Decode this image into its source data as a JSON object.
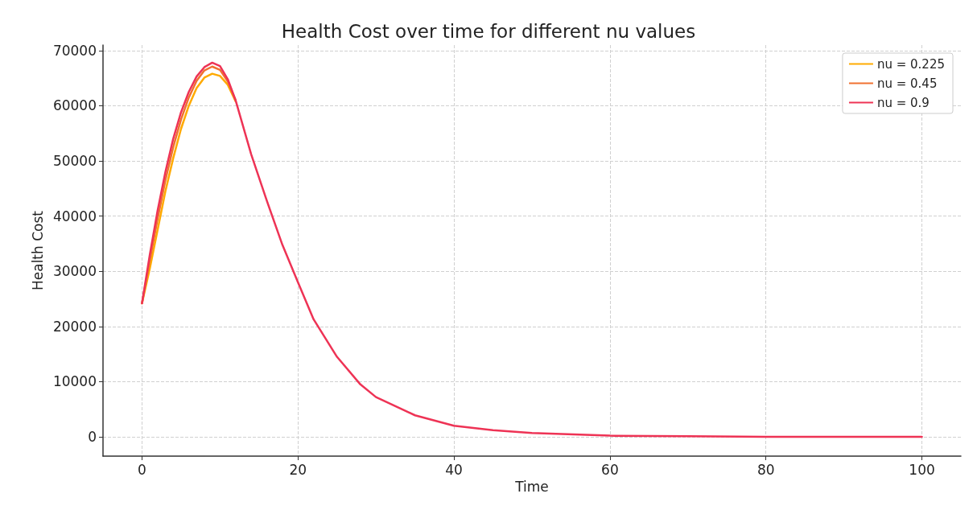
{
  "chart_data": {
    "type": "line",
    "title": "Health Cost over time for different nu values",
    "xlabel": "Time",
    "ylabel": "Health Cost",
    "xlim": [
      -5,
      105
    ],
    "xticks": [
      0,
      20,
      40,
      60,
      80,
      100
    ],
    "ylim": [
      -3500,
      71000
    ],
    "yticks": [
      0,
      10000,
      20000,
      30000,
      40000,
      50000,
      60000,
      70000
    ],
    "grid": true,
    "legend": "top right",
    "line_style": "solid",
    "marker": "none",
    "series": [
      {
        "name": "nu = 0.225",
        "color": "#ffaa00",
        "x": [
          0,
          1,
          2,
          3,
          4,
          5,
          6,
          7,
          8,
          9,
          10,
          11,
          12
        ],
        "values": [
          24200,
          30500,
          37500,
          44500,
          50500,
          55800,
          60000,
          63200,
          65100,
          65800,
          65400,
          63800,
          60800
        ]
      },
      {
        "name": "nu = 0.45",
        "color": "#f07030",
        "x": [
          0,
          1,
          2,
          3,
          4,
          5,
          6,
          7,
          8,
          9,
          10,
          11,
          12
        ],
        "values": [
          24200,
          32000,
          39500,
          46500,
          52500,
          57500,
          61500,
          64500,
          66400,
          67100,
          66500,
          64400,
          61000
        ]
      },
      {
        "name": "nu = 0.9",
        "color": "#ee3355",
        "x": [
          0,
          1,
          2,
          3,
          4,
          5,
          6,
          7,
          8,
          9,
          10,
          11,
          12,
          14,
          16,
          18,
          20,
          22,
          25,
          28,
          30,
          35,
          40,
          45,
          50,
          60,
          70,
          80,
          90,
          100
        ],
        "values": [
          24200,
          33000,
          41000,
          48000,
          54000,
          58800,
          62500,
          65300,
          67000,
          67800,
          67200,
          64800,
          61000,
          51200,
          42800,
          34800,
          28000,
          21300,
          14500,
          9500,
          7200,
          3900,
          2000,
          1200,
          700,
          200,
          100,
          0,
          0,
          0
        ]
      }
    ]
  }
}
